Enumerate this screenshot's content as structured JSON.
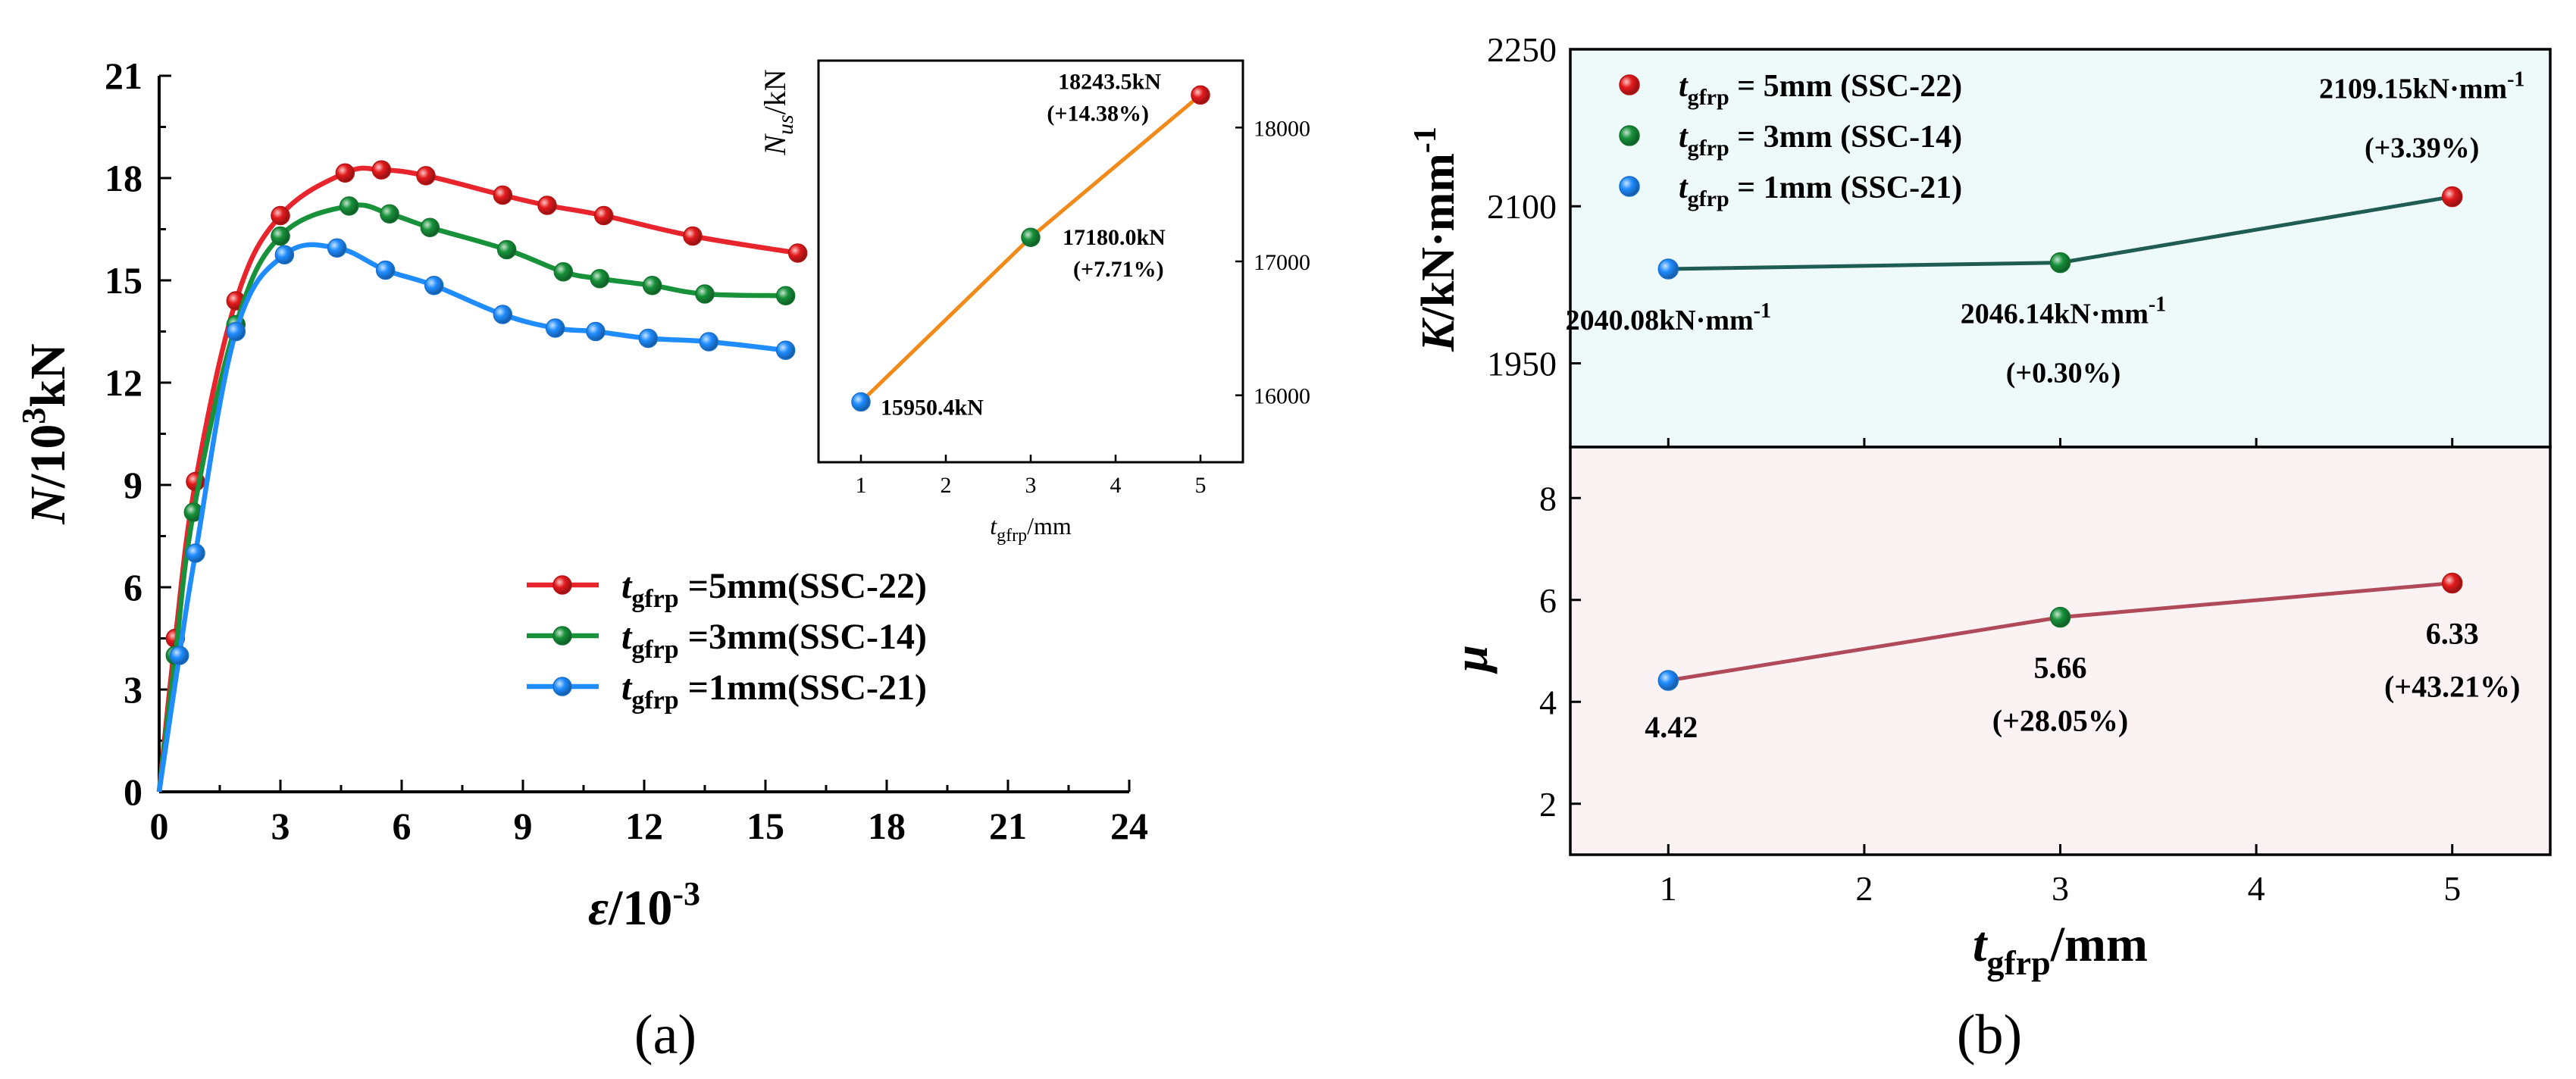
{
  "figure": {
    "panel_a_label": "(a)",
    "panel_b_label": "(b)",
    "colors": {
      "red": "#e41a1c",
      "red_line": "#e8242c",
      "green": "#17913a",
      "blue": "#1f8cff",
      "orange": "#f28a1a",
      "teal_line": "#1f5c52",
      "maroon_line": "#b04a5a",
      "panel_top_bg": "#eef9f9",
      "panel_bottom_bg": "#fbf2f3"
    }
  },
  "chart_data": [
    {
      "id": "a_main",
      "type": "line",
      "title": "",
      "xlabel_symbol": "ε",
      "xlabel_unit": "/10",
      "xlabel_exp": "-3",
      "ylabel_symbol": "N",
      "ylabel_unit": "/10",
      "ylabel_exp": "3",
      "ylabel_tail": "kN",
      "xlim": [
        0,
        24
      ],
      "ylim": [
        0,
        21
      ],
      "xticks": [
        0,
        3,
        6,
        9,
        12,
        15,
        18,
        21,
        24
      ],
      "yticks": [
        0,
        3,
        6,
        9,
        12,
        15,
        18,
        21
      ],
      "legend_position": "lower-right",
      "legend": [
        {
          "symbol": "t",
          "sub": "gfrp",
          "text": " =5mm(SSC-22)",
          "color_key": "red"
        },
        {
          "symbol": "t",
          "sub": "gfrp",
          "text": " =3mm(SSC-14)",
          "color_key": "green"
        },
        {
          "symbol": "t",
          "sub": "gfrp",
          "text": " =1mm(SSC-21)",
          "color_key": "blue"
        }
      ],
      "series": [
        {
          "name": "tgfrp=5mm(SSC-22)",
          "color_key": "red",
          "points": [
            [
              0,
              0
            ],
            [
              0.4,
              4.5
            ],
            [
              0.9,
              9.1
            ],
            [
              1.9,
              14.4
            ],
            [
              3.0,
              16.9
            ],
            [
              4.6,
              18.15
            ],
            [
              5.5,
              18.24
            ],
            [
              6.6,
              18.07
            ],
            [
              8.5,
              17.5
            ],
            [
              9.6,
              17.2
            ],
            [
              11.0,
              16.9
            ],
            [
              13.2,
              16.3
            ],
            [
              15.8,
              15.8
            ]
          ]
        },
        {
          "name": "tgfrp=3mm(SSC-14)",
          "color_key": "green",
          "points": [
            [
              0,
              0
            ],
            [
              0.4,
              4.0
            ],
            [
              0.85,
              8.2
            ],
            [
              1.9,
              13.7
            ],
            [
              3.0,
              16.3
            ],
            [
              4.7,
              17.18
            ],
            [
              5.7,
              16.95
            ],
            [
              6.7,
              16.55
            ],
            [
              8.6,
              15.9
            ],
            [
              10.0,
              15.25
            ],
            [
              10.9,
              15.05
            ],
            [
              12.2,
              14.85
            ],
            [
              13.5,
              14.6
            ],
            [
              15.5,
              14.55
            ]
          ]
        },
        {
          "name": "tgfrp=1mm(SSC-21)",
          "color_key": "blue",
          "points": [
            [
              0,
              0
            ],
            [
              0.5,
              4.0
            ],
            [
              0.9,
              7.0
            ],
            [
              1.9,
              13.5
            ],
            [
              3.1,
              15.75
            ],
            [
              4.4,
              15.95
            ],
            [
              5.6,
              15.3
            ],
            [
              6.8,
              14.85
            ],
            [
              8.5,
              14.0
            ],
            [
              9.8,
              13.6
            ],
            [
              10.8,
              13.5
            ],
            [
              12.1,
              13.3
            ],
            [
              13.6,
              13.2
            ],
            [
              15.5,
              12.95
            ]
          ]
        }
      ]
    },
    {
      "id": "a_inset",
      "type": "line",
      "xlabel_symbol": "t",
      "xlabel_sub": "gfrp",
      "xlabel_unit": "/mm",
      "ylabel_symbol": "N",
      "ylabel_sub": "us",
      "ylabel_unit": "/kN",
      "xlim": [
        0.5,
        5.5
      ],
      "ylim": [
        15500,
        18500
      ],
      "xticks": [
        1,
        2,
        3,
        4,
        5
      ],
      "yticks": [
        16000,
        17000,
        18000
      ],
      "points": [
        {
          "x": 1,
          "y": 15950.4,
          "color_key": "blue",
          "label": "15950.4kN",
          "label2": ""
        },
        {
          "x": 3,
          "y": 17180.0,
          "color_key": "green",
          "label": "17180.0kN",
          "label2": "(+7.71%)"
        },
        {
          "x": 5,
          "y": 18243.5,
          "color_key": "red",
          "label": "18243.5kN",
          "label2": "(+14.38%)"
        }
      ]
    },
    {
      "id": "b_top",
      "type": "line",
      "ylabel_symbol": "K",
      "ylabel_unit": "/kN·mm",
      "ylabel_exp": "-1",
      "xlim": [
        0.5,
        5.5
      ],
      "ylim": [
        1870,
        2250
      ],
      "yticks": [
        1950,
        2100,
        2250
      ],
      "legend_position": "top-left",
      "legend": [
        {
          "symbol": "t",
          "sub": "gfrp",
          "text": " = 5mm (SSC-22)",
          "color_key": "red"
        },
        {
          "symbol": "t",
          "sub": "gfrp",
          "text": " = 3mm (SSC-14)",
          "color_key": "green"
        },
        {
          "symbol": "t",
          "sub": "gfrp",
          "text": " = 1mm (SSC-21)",
          "color_key": "blue"
        }
      ],
      "points": [
        {
          "x": 1,
          "y": 2040.08,
          "color_key": "blue",
          "label": "2040.08kN·mm",
          "label_exp": "-1",
          "label2": ""
        },
        {
          "x": 3,
          "y": 2046.14,
          "color_key": "green",
          "label": "2046.14kN·mm",
          "label_exp": "-1",
          "label2": "(+0.30%)"
        },
        {
          "x": 5,
          "y": 2109.15,
          "color_key": "red",
          "label": "2109.15kN·mm",
          "label_exp": "-1",
          "label2": "(+3.39%)"
        }
      ]
    },
    {
      "id": "b_bottom",
      "type": "line",
      "ylabel_symbol": "μ",
      "xlabel_symbol": "t",
      "xlabel_sub": "gfrp",
      "xlabel_unit": "/mm",
      "xlim": [
        0.5,
        5.5
      ],
      "ylim": [
        1,
        9
      ],
      "xticks": [
        1,
        2,
        3,
        4,
        5
      ],
      "yticks": [
        2,
        4,
        6,
        8
      ],
      "points": [
        {
          "x": 1,
          "y": 4.42,
          "color_key": "blue",
          "label": "4.42",
          "label2": ""
        },
        {
          "x": 3,
          "y": 5.66,
          "color_key": "green",
          "label": "5.66",
          "label2": "(+28.05%)"
        },
        {
          "x": 5,
          "y": 6.33,
          "color_key": "red",
          "label": "6.33",
          "label2": "(+43.21%)"
        }
      ]
    }
  ]
}
